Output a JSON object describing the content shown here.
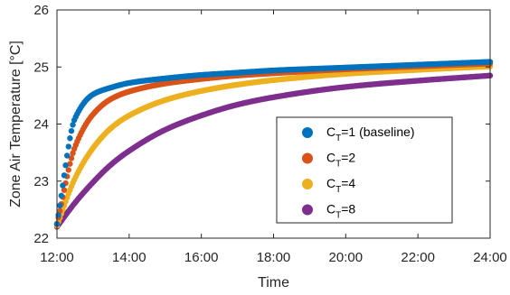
{
  "chart_data": {
    "type": "scatter",
    "xlabel": "Time",
    "ylabel": "Zone Air Temperature [°C]",
    "xlim": [
      12,
      24
    ],
    "ylim": [
      22,
      26
    ],
    "x_ticks": [
      12,
      14,
      16,
      18,
      20,
      22,
      24
    ],
    "x_tick_labels": [
      "12:00",
      "14:00",
      "16:00",
      "18:00",
      "20:00",
      "22:00",
      "24:00"
    ],
    "y_ticks": [
      22,
      23,
      24,
      25,
      26
    ],
    "y_tick_labels": [
      "22",
      "23",
      "24",
      "25",
      "26"
    ],
    "grid": false,
    "legend_position": "lower-right",
    "x": [
      12.0,
      12.5,
      13.0,
      13.5,
      14.0,
      15.0,
      16.0,
      17.0,
      18.0,
      20.0,
      22.0,
      24.0
    ],
    "series": [
      {
        "legend": {
          "prefix": "C",
          "sub": "T",
          "suffix": "=1 (baseline)"
        },
        "color": "#0072BD",
        "values": [
          22.25,
          24.1,
          24.52,
          24.64,
          24.72,
          24.8,
          24.86,
          24.9,
          24.94,
          24.99,
          25.04,
          25.09
        ]
      },
      {
        "legend": {
          "prefix": "C",
          "sub": "T",
          "suffix": "=2"
        },
        "color": "#D95319",
        "values": [
          22.25,
          23.6,
          24.17,
          24.44,
          24.57,
          24.71,
          24.79,
          24.85,
          24.89,
          24.96,
          25.01,
          25.06
        ]
      },
      {
        "legend": {
          "prefix": "C",
          "sub": "T",
          "suffix": "=4"
        },
        "color": "#EDB120",
        "values": [
          22.22,
          23.05,
          23.58,
          23.93,
          24.15,
          24.42,
          24.58,
          24.69,
          24.77,
          24.88,
          24.95,
          25.01
        ]
      },
      {
        "legend": {
          "prefix": "C",
          "sub": "T",
          "suffix": "=8"
        },
        "color": "#7E2F8E",
        "values": [
          22.2,
          22.62,
          22.98,
          23.29,
          23.53,
          23.9,
          24.15,
          24.34,
          24.47,
          24.65,
          24.76,
          24.85
        ]
      }
    ]
  }
}
